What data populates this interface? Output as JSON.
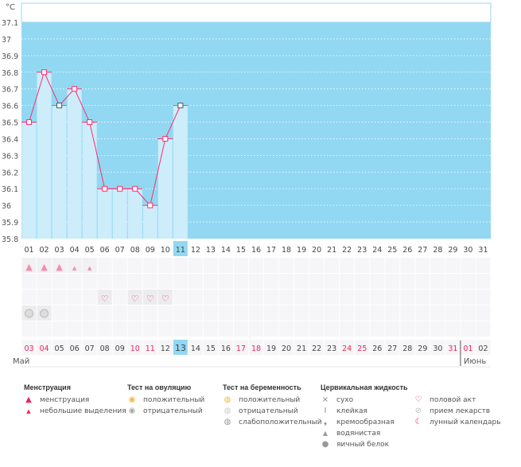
{
  "unit": "°C",
  "y_ticks": [
    "37.1",
    "37",
    "36.9",
    "36.8",
    "36.7",
    "36.6",
    "36.5",
    "36.4",
    "36.3",
    "36.2",
    "36.1",
    "36",
    "35.9",
    "35.8"
  ],
  "cycle_days": [
    "01",
    "02",
    "03",
    "04",
    "05",
    "06",
    "07",
    "08",
    "09",
    "10",
    "11",
    "12",
    "13",
    "14",
    "15",
    "16",
    "17",
    "18",
    "19",
    "20",
    "21",
    "22",
    "23",
    "24",
    "25",
    "26",
    "27",
    "28",
    "29",
    "30",
    "31"
  ],
  "today_cycle_day": "11",
  "temperatures": [
    36.5,
    36.8,
    36.6,
    36.7,
    36.5,
    36.1,
    36.1,
    36.1,
    36.0,
    36.4,
    36.6
  ],
  "menstruation": [
    "heavy",
    "heavy",
    "heavy",
    "light",
    "light"
  ],
  "intercourse_days": [
    "06",
    "08",
    "09",
    "10"
  ],
  "medication_days": [
    "01",
    "02"
  ],
  "dates": [
    "03",
    "04",
    "05",
    "06",
    "07",
    "08",
    "09",
    "10",
    "11",
    "12",
    "13",
    "14",
    "15",
    "16",
    "17",
    "18",
    "19",
    "20",
    "21",
    "22",
    "23",
    "24",
    "25",
    "26",
    "27",
    "28",
    "29",
    "30",
    "31",
    "01",
    "02"
  ],
  "weekend_dates_index": [
    0,
    1,
    7,
    8,
    14,
    15,
    21,
    22,
    28,
    29
  ],
  "today_date": "13",
  "months": {
    "first": "Май",
    "second": "Июнь"
  },
  "colors": {
    "chart_bg": "#92d8f2",
    "bar": "#cdedfb",
    "line": "#ff2d6e",
    "today": "#92d8f2",
    "weekend": "#f0245a"
  },
  "legend": {
    "menstruation": {
      "title": "Менструация",
      "items": [
        "менструация",
        "небольшие выделения"
      ]
    },
    "ovulation": {
      "title": "Тест на овуляцию",
      "items": [
        "положительный",
        "отрицательный"
      ]
    },
    "pregnancy": {
      "title": "Тест на беременность",
      "items": [
        "положительный",
        "отрицательный",
        "слабоположительный"
      ]
    },
    "cervical": {
      "title": "Цервикальная жидкость",
      "items": [
        "сухо",
        "клейкая",
        "кремообразная",
        "водянистая",
        "яичный белок"
      ]
    },
    "other": {
      "items": [
        "половой акт",
        "прием лекарств",
        "лунный календарь"
      ]
    }
  }
}
